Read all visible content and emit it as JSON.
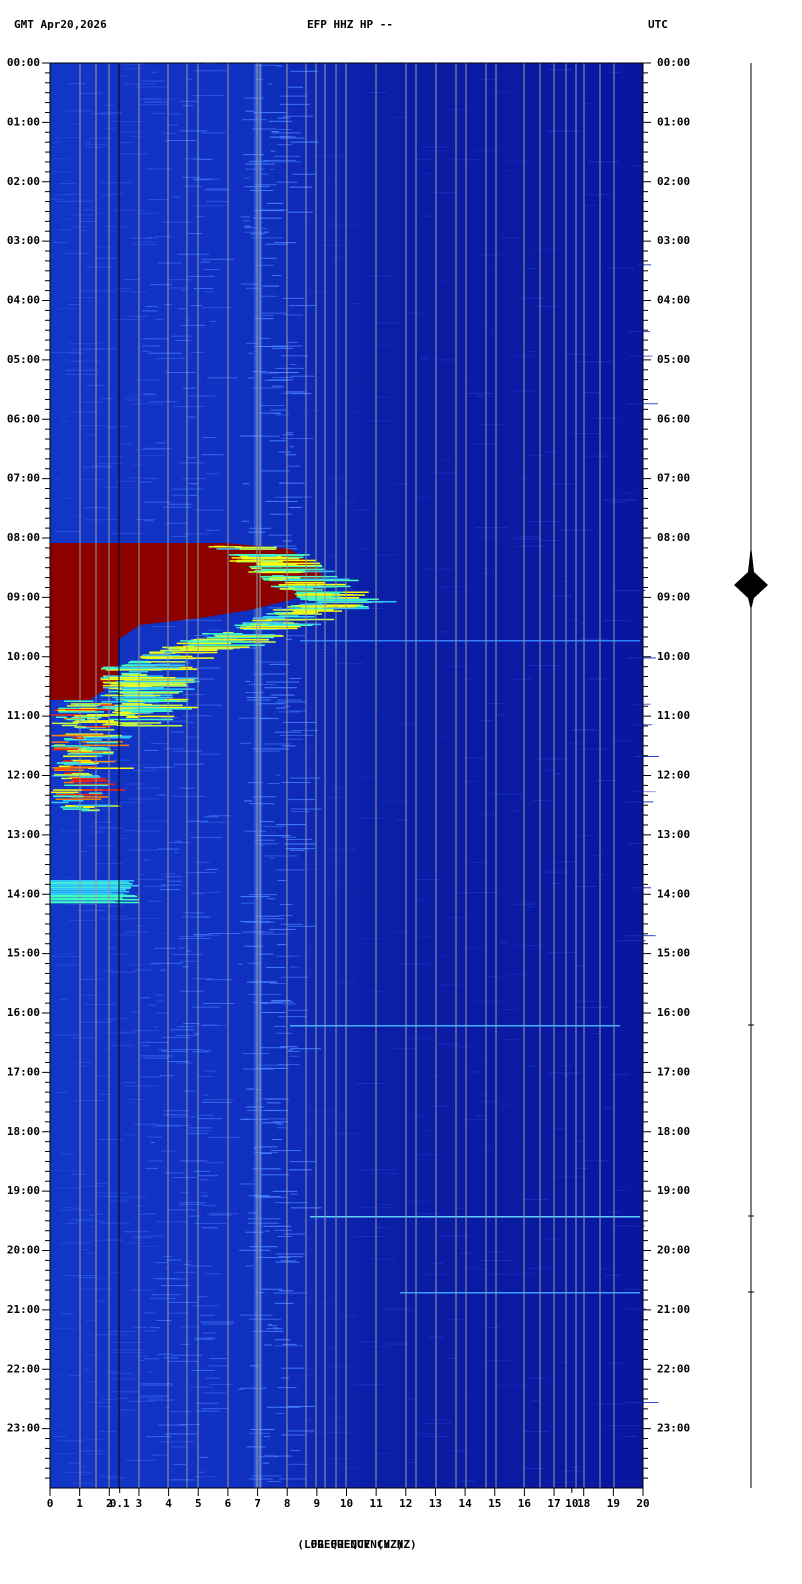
{
  "chart_data": {
    "type": "spectrogram",
    "title_left": "GMT  Apr20,2026",
    "title": "EFP HHZ HP --",
    "title_right": "UTC",
    "x_label": "(LOG FREQUENCY HZ)",
    "x_label_2": "FREQUENCY (HZ)",
    "xlim": [
      0,
      20
    ],
    "xticks": [
      0,
      1,
      2,
      3,
      4,
      5,
      6,
      7,
      8,
      9,
      10,
      11,
      12,
      13,
      14,
      15,
      16,
      17,
      18,
      19,
      20
    ],
    "log_ticks": [
      {
        "value": 2.35,
        "label": "0.1"
      },
      {
        "value": 17.6,
        "label": "10"
      }
    ],
    "ylim": [
      0,
      24
    ],
    "yticks": [
      {
        "value": 0,
        "label": "00:00"
      },
      {
        "value": 1,
        "label": "01:00"
      },
      {
        "value": 2,
        "label": "02:00"
      },
      {
        "value": 3,
        "label": "03:00"
      },
      {
        "value": 4,
        "label": "04:00"
      },
      {
        "value": 5,
        "label": "05:00"
      },
      {
        "value": 6,
        "label": "06:00"
      },
      {
        "value": 7,
        "label": "07:00"
      },
      {
        "value": 8,
        "label": "08:00"
      },
      {
        "value": 9,
        "label": "09:00"
      },
      {
        "value": 10,
        "label": "10:00"
      },
      {
        "value": 11,
        "label": "11:00"
      },
      {
        "value": 12,
        "label": "12:00"
      },
      {
        "value": 13,
        "label": "13:00"
      },
      {
        "value": 14,
        "label": "14:00"
      },
      {
        "value": 15,
        "label": "15:00"
      },
      {
        "value": 16,
        "label": "16:00"
      },
      {
        "value": 17,
        "label": "17:00"
      },
      {
        "value": 18,
        "label": "18:00"
      },
      {
        "value": 19,
        "label": "19:00"
      },
      {
        "value": 20,
        "label": "20:00"
      },
      {
        "value": 21,
        "label": "21:00"
      },
      {
        "value": 22,
        "label": "22:00"
      },
      {
        "value": 23,
        "label": "23:00"
      }
    ]
  }
}
